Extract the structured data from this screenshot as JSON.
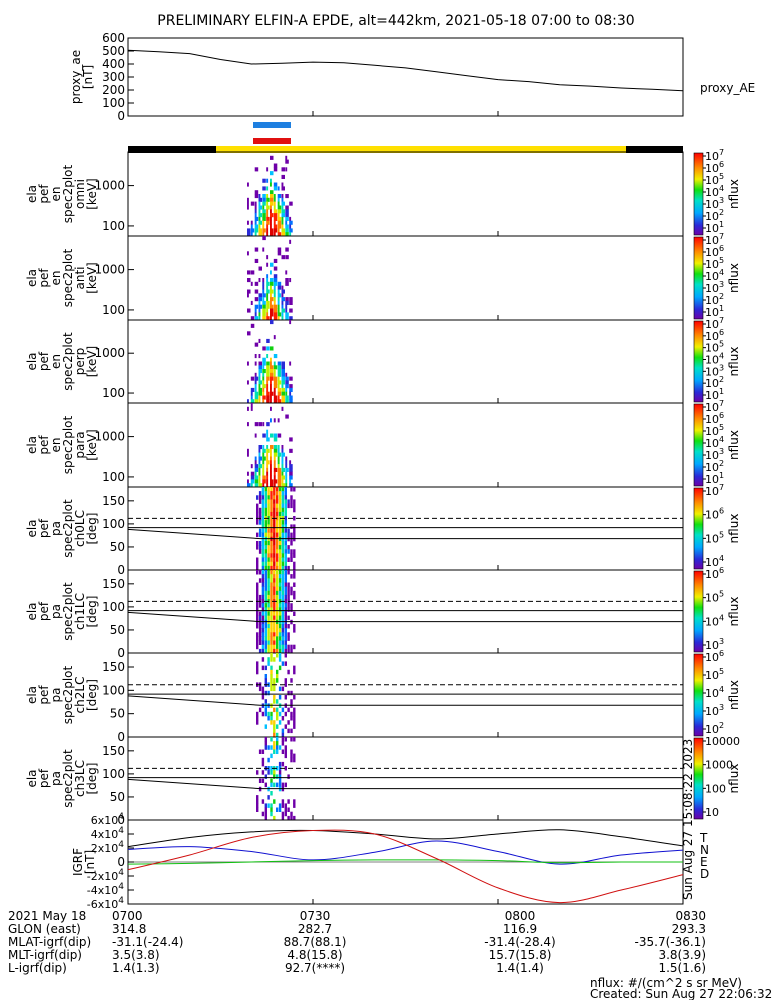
{
  "title": "PRELIMINARY ELFIN-A EPDE, alt=442km, 2021-05-18 07:00 to 08:30",
  "time_ticks": [
    "0700",
    "0730",
    "0800",
    "0830"
  ],
  "ephemeris_rows": [
    {
      "label": "2021 May 18",
      "values": [
        "0700",
        "0730",
        "0800",
        "0830"
      ]
    },
    {
      "label": "GLON (east)",
      "values": [
        "314.8",
        "282.7",
        "116.9",
        "293.3"
      ]
    },
    {
      "label": "MLAT-igrf(dip)",
      "values": [
        "-31.1(-24.4)",
        "88.7(88.1)",
        "-31.4(-28.4)",
        "-35.7(-36.1)"
      ]
    },
    {
      "label": "MLT-igrf(dip)",
      "values": [
        "3.5(3.8)",
        "4.8(15.8)",
        "15.7(15.8)",
        "3.8(3.9)"
      ]
    },
    {
      "label": "L-igrf(dip)",
      "values": [
        "1.4(1.3)",
        "92.7(****)",
        "1.4(1.4)",
        "1.5(1.6)"
      ]
    }
  ],
  "footer": {
    "units": "nflux: #/(cm^2 s sr MeV)",
    "created": "Created: Sun Aug 27 22:06:32 2023",
    "side_stamp": "Sun Aug 27 15:08:22 2023"
  },
  "colors": {
    "science_bar": "#ffe000",
    "outside_bar": "#000000",
    "blue_bar": "#1e7fe0",
    "red_bar": "#e01010",
    "b_n": "#1010d0",
    "b_e": "#10c010",
    "b_d": "#d01010",
    "b_t": "#000000"
  },
  "chart_data": [
    {
      "type": "line",
      "panel": "proxy_ae",
      "ylabel": [
        "proxy_ae",
        "[nT]"
      ],
      "legend": [
        "proxy_AE"
      ],
      "yticks": [
        "600",
        "500",
        "400",
        "300",
        "200",
        "100",
        "0"
      ],
      "ylim": [
        0,
        600
      ],
      "x": [
        "07:00",
        "07:05",
        "07:10",
        "07:15",
        "07:20",
        "07:25",
        "07:30",
        "07:35",
        "07:40",
        "07:45",
        "07:50",
        "07:55",
        "08:00",
        "08:05",
        "08:10",
        "08:15",
        "08:20",
        "08:25",
        "08:30"
      ],
      "values": [
        505,
        495,
        480,
        435,
        400,
        405,
        415,
        410,
        390,
        370,
        340,
        310,
        280,
        265,
        240,
        230,
        215,
        205,
        195
      ]
    },
    {
      "type": "heatmap",
      "panel": "omni",
      "ylabel": [
        "ela",
        "pef",
        "en",
        "spec2plot",
        "omni",
        "[keV]"
      ],
      "yticks": [
        "1000",
        "100"
      ],
      "colorbar": {
        "label": "nflux",
        "ticks": [
          "10^7",
          "10^6",
          "10^5",
          "10^4",
          "10^3",
          "10^2",
          "10^1"
        ]
      }
    },
    {
      "type": "heatmap",
      "panel": "anti",
      "ylabel": [
        "ela",
        "pef",
        "en",
        "spec2plot",
        "anti",
        "[keV]"
      ],
      "yticks": [
        "1000",
        "100"
      ],
      "colorbar": {
        "label": "nflux",
        "ticks": [
          "10^7",
          "10^6",
          "10^5",
          "10^4",
          "10^3",
          "10^2",
          "10^1"
        ]
      }
    },
    {
      "type": "heatmap",
      "panel": "perp",
      "ylabel": [
        "ela",
        "pef",
        "en",
        "spec2plot",
        "perp",
        "[keV]"
      ],
      "yticks": [
        "1000",
        "100"
      ],
      "colorbar": {
        "label": "nflux",
        "ticks": [
          "10^7",
          "10^6",
          "10^5",
          "10^4",
          "10^3",
          "10^2",
          "10^1"
        ]
      }
    },
    {
      "type": "heatmap",
      "panel": "para",
      "ylabel": [
        "ela",
        "pef",
        "en",
        "spec2plot",
        "para",
        "[keV]"
      ],
      "yticks": [
        "1000",
        "100"
      ],
      "colorbar": {
        "label": "nflux",
        "ticks": [
          "10^7",
          "10^6",
          "10^5",
          "10^4",
          "10^3",
          "10^2",
          "10^1"
        ]
      }
    },
    {
      "type": "heatmap",
      "panel": "ch0LC",
      "ylabel": [
        "ela",
        "pef",
        "pa",
        "spec2plot",
        "ch0LC",
        "[deg]"
      ],
      "yticks": [
        "150",
        "100",
        "50",
        "0"
      ],
      "ylim": [
        0,
        180
      ],
      "colorbar": {
        "label": "nflux",
        "ticks": [
          "10^7",
          "10^6",
          "10^5",
          "10^4"
        ]
      }
    },
    {
      "type": "heatmap",
      "panel": "ch1LC",
      "ylabel": [
        "ela",
        "pef",
        "pa",
        "spec2plot",
        "ch1LC",
        "[deg]"
      ],
      "yticks": [
        "150",
        "100",
        "50",
        "0"
      ],
      "ylim": [
        0,
        180
      ],
      "colorbar": {
        "label": "nflux",
        "ticks": [
          "10^6",
          "10^5",
          "10^4",
          "10^3"
        ]
      }
    },
    {
      "type": "heatmap",
      "panel": "ch2LC",
      "ylabel": [
        "ela",
        "pef",
        "pa",
        "spec2plot",
        "ch2LC",
        "[deg]"
      ],
      "yticks": [
        "150",
        "100",
        "50",
        "0"
      ],
      "ylim": [
        0,
        180
      ],
      "colorbar": {
        "label": "nflux",
        "ticks": [
          "10^6",
          "10^5",
          "10^4",
          "10^3",
          "10^2"
        ]
      }
    },
    {
      "type": "heatmap",
      "panel": "ch3LC",
      "ylabel": [
        "ela",
        "pef",
        "pa",
        "spec2plot",
        "ch3LC",
        "[deg]"
      ],
      "yticks": [
        "150",
        "100",
        "50",
        "0"
      ],
      "ylim": [
        0,
        180
      ],
      "colorbar": {
        "label": "nflux",
        "ticks": [
          "10000",
          "1000",
          "100",
          "10"
        ]
      }
    },
    {
      "type": "line",
      "panel": "b_field",
      "ylabel": [
        "IGRF",
        "[nT]"
      ],
      "yticks": [
        "6x10^4",
        "4x10^4",
        "2x10^4",
        "0",
        "-2x10^4",
        "-4x10^4",
        "-6x10^4"
      ],
      "ylim": [
        -60000,
        60000
      ],
      "legend": [
        "T",
        "N",
        "E",
        "D"
      ],
      "x": [
        "07:00",
        "07:10",
        "07:20",
        "07:30",
        "07:40",
        "07:50",
        "08:00",
        "08:10",
        "08:20",
        "08:30"
      ],
      "series": [
        {
          "name": "T",
          "values": [
            22000,
            35000,
            43000,
            45000,
            40000,
            33000,
            40000,
            46000,
            36000,
            23000
          ]
        },
        {
          "name": "N",
          "values": [
            18000,
            22000,
            15000,
            3000,
            14000,
            30000,
            15000,
            -3000,
            10000,
            17000
          ]
        },
        {
          "name": "E",
          "values": [
            -3000,
            -2000,
            0,
            2000,
            3000,
            3000,
            2000,
            -1000,
            0,
            0
          ]
        },
        {
          "name": "D",
          "values": [
            -11000,
            10000,
            35000,
            45000,
            40000,
            5000,
            -37000,
            -58000,
            -40000,
            -18000
          ]
        }
      ]
    }
  ]
}
